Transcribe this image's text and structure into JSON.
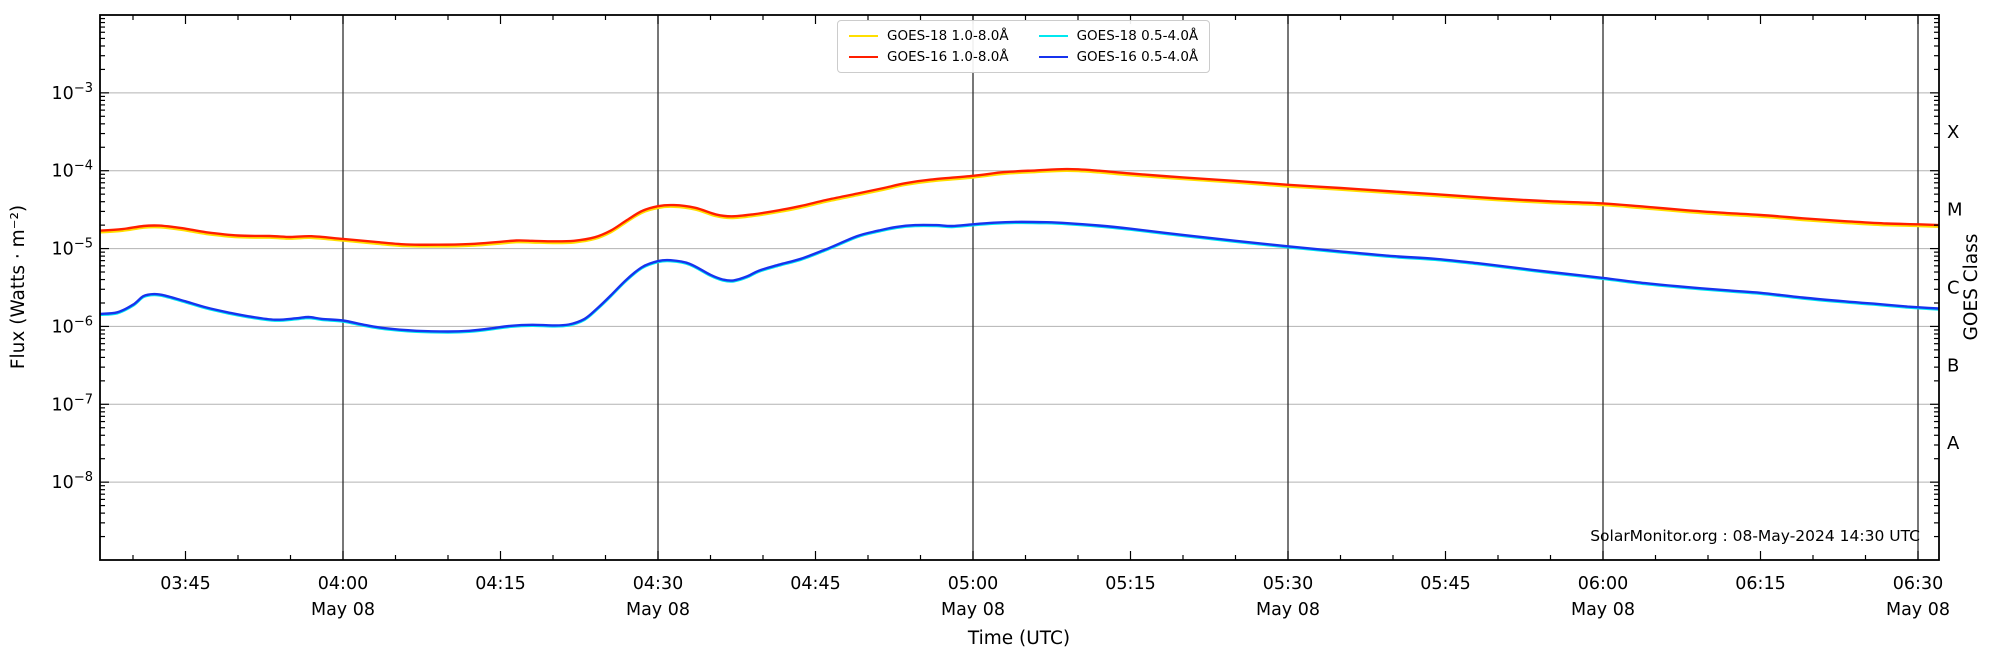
{
  "page": {
    "background": "#ffffff"
  },
  "legend": {
    "items": [
      {
        "label": "GOES-18 1.0-8.0Å",
        "color": "#ffdf00"
      },
      {
        "label": "GOES-16 1.0-8.0Å",
        "color": "#ff1e00"
      },
      {
        "label": "GOES-18 0.5-4.0Å",
        "color": "#00e8f0"
      },
      {
        "label": "GOES-16 0.5-4.0Å",
        "color": "#1733ee"
      }
    ]
  },
  "axes": {
    "x": {
      "title": "Time (UTC)",
      "minor_interval_min": 5,
      "major_ticks": [
        {
          "t": 0,
          "label": "03:45"
        },
        {
          "t": 15,
          "label": "04:00",
          "day": "May 08"
        },
        {
          "t": 30,
          "label": "04:15"
        },
        {
          "t": 45,
          "label": "04:30",
          "day": "May 08"
        },
        {
          "t": 60,
          "label": "04:45"
        },
        {
          "t": 75,
          "label": "05:00",
          "day": "May 08"
        },
        {
          "t": 90,
          "label": "05:15"
        },
        {
          "t": 105,
          "label": "05:30",
          "day": "May 08"
        },
        {
          "t": 120,
          "label": "05:45"
        },
        {
          "t": 135,
          "label": "06:00",
          "day": "May 08"
        },
        {
          "t": 150,
          "label": "06:15"
        },
        {
          "t": 165,
          "label": "06:30",
          "day": "May 08"
        }
      ]
    },
    "y_left": {
      "title": "Flux (Watts · m⁻²)",
      "labeled_decades": [
        -3,
        -4,
        -5,
        -6,
        -7,
        -8
      ],
      "range_decades": [
        -9,
        -2
      ]
    },
    "y_right": {
      "title": "GOES Class",
      "classes": [
        {
          "label": "X",
          "log_flux": -3.5
        },
        {
          "label": "M",
          "log_flux": -4.5
        },
        {
          "label": "C",
          "log_flux": -5.5
        },
        {
          "label": "B",
          "log_flux": -6.5
        },
        {
          "label": "A",
          "log_flux": -7.5
        }
      ]
    }
  },
  "watermark": {
    "text": "SolarMonitor.org : 08-May-2024 14:30 UTC"
  },
  "chart_data": {
    "type": "line",
    "title": "",
    "x_axis": {
      "label": "Time (UTC)",
      "date": "May 08",
      "start_utc": "03:37",
      "end_utc": "06:32",
      "t_unit": "minutes after 03:45 UTC",
      "major_tick_interval_min": 15,
      "vertical_gridlines_at": [
        "04:00",
        "04:30",
        "05:00",
        "05:30",
        "06:00",
        "06:30"
      ]
    },
    "y_axis": {
      "label": "Flux (Watts · m⁻²)",
      "scale": "log",
      "range": [
        1e-09,
        0.01
      ],
      "labeled_ticks": [
        "10⁻³",
        "10⁻⁴",
        "10⁻⁵",
        "10⁻⁶",
        "10⁻⁷",
        "10⁻⁸"
      ]
    },
    "right_axis": {
      "label": "GOES Class",
      "classes": [
        "X",
        "M",
        "C",
        "B",
        "A"
      ]
    },
    "legend_position": "top center",
    "grid": {
      "horizontal": "light gray at each decade",
      "vertical": "dark at 30-min marks"
    },
    "series": [
      {
        "name": "GOES-18 1.0-8.0Å",
        "color": "#ffdf00",
        "overlaps": "GOES-16 1.0-8.0Å",
        "note": "plots directly beneath GOES-16 long channel; only thin yellow fringes visible"
      },
      {
        "name": "GOES-16 1.0-8.0Å",
        "color": "#ff1e00",
        "points": [
          [
            -8.1,
            1.7e-05
          ],
          [
            -6,
            1.78e-05
          ],
          [
            -4,
            1.95e-05
          ],
          [
            -2.5,
            1.97e-05
          ],
          [
            -1,
            1.88e-05
          ],
          [
            0,
            1.8e-05
          ],
          [
            2,
            1.62e-05
          ],
          [
            5,
            1.47e-05
          ],
          [
            8,
            1.45e-05
          ],
          [
            10,
            1.41e-05
          ],
          [
            12,
            1.44e-05
          ],
          [
            15,
            1.33e-05
          ],
          [
            18,
            1.22e-05
          ],
          [
            21,
            1.13e-05
          ],
          [
            24,
            1.12e-05
          ],
          [
            27,
            1.14e-05
          ],
          [
            30,
            1.22e-05
          ],
          [
            31.5,
            1.27e-05
          ],
          [
            33,
            1.26e-05
          ],
          [
            35,
            1.24e-05
          ],
          [
            37,
            1.26e-05
          ],
          [
            39,
            1.4e-05
          ],
          [
            40.5,
            1.7e-05
          ],
          [
            42,
            2.3e-05
          ],
          [
            43.5,
            3.05e-05
          ],
          [
            45,
            3.5e-05
          ],
          [
            46.5,
            3.62e-05
          ],
          [
            48.5,
            3.35e-05
          ],
          [
            50.5,
            2.75e-05
          ],
          [
            52,
            2.6e-05
          ],
          [
            54,
            2.75e-05
          ],
          [
            56.5,
            3.1e-05
          ],
          [
            58.5,
            3.5e-05
          ],
          [
            61,
            4.2e-05
          ],
          [
            64,
            5.1e-05
          ],
          [
            66.5,
            6e-05
          ],
          [
            68.5,
            6.9e-05
          ],
          [
            71,
            7.7e-05
          ],
          [
            75,
            8.6e-05
          ],
          [
            78,
            9.6e-05
          ],
          [
            81,
            0.000101
          ],
          [
            84,
            0.000105
          ],
          [
            87,
            0.0001
          ],
          [
            90,
            9.2e-05
          ],
          [
            95,
            8.2e-05
          ],
          [
            100,
            7.4e-05
          ],
          [
            105,
            6.6e-05
          ],
          [
            110,
            6e-05
          ],
          [
            115,
            5.4e-05
          ],
          [
            119,
            5e-05
          ],
          [
            125,
            4.4e-05
          ],
          [
            130,
            4.05e-05
          ],
          [
            135,
            3.8e-05
          ],
          [
            139,
            3.45e-05
          ],
          [
            143,
            3.1e-05
          ],
          [
            147,
            2.85e-05
          ],
          [
            150,
            2.7e-05
          ],
          [
            154,
            2.45e-05
          ],
          [
            158,
            2.25e-05
          ],
          [
            162,
            2.1e-05
          ],
          [
            165,
            2.05e-05
          ],
          [
            167,
            2e-05
          ]
        ]
      },
      {
        "name": "GOES-18 0.5-4.0Å",
        "color": "#00e8f0",
        "overlaps": "GOES-16 0.5-4.0Å",
        "note": "plots directly beneath GOES-16 short channel; essentially hidden"
      },
      {
        "name": "GOES-16 0.5-4.0Å",
        "color": "#1733ee",
        "points": [
          [
            -8.1,
            1.45e-06
          ],
          [
            -6.5,
            1.52e-06
          ],
          [
            -5,
            1.9e-06
          ],
          [
            -4,
            2.45e-06
          ],
          [
            -3,
            2.6e-06
          ],
          [
            -2,
            2.5e-06
          ],
          [
            0,
            2.1e-06
          ],
          [
            2,
            1.75e-06
          ],
          [
            4,
            1.52e-06
          ],
          [
            6,
            1.35e-06
          ],
          [
            8.5,
            1.22e-06
          ],
          [
            10.5,
            1.27e-06
          ],
          [
            11.7,
            1.32e-06
          ],
          [
            13,
            1.25e-06
          ],
          [
            15,
            1.19e-06
          ],
          [
            17,
            1.05e-06
          ],
          [
            19,
            9.5e-07
          ],
          [
            22,
            8.8e-07
          ],
          [
            25,
            8.6e-07
          ],
          [
            27,
            8.8e-07
          ],
          [
            29,
            9.4e-07
          ],
          [
            31,
            1.02e-06
          ],
          [
            33,
            1.05e-06
          ],
          [
            35,
            1.03e-06
          ],
          [
            36.5,
            1.06e-06
          ],
          [
            38,
            1.25e-06
          ],
          [
            39.2,
            1.7e-06
          ],
          [
            40.5,
            2.5e-06
          ],
          [
            42,
            4e-06
          ],
          [
            43.5,
            5.8e-06
          ],
          [
            45,
            6.9e-06
          ],
          [
            46.2,
            7.1e-06
          ],
          [
            48,
            6.4e-06
          ],
          [
            50,
            4.6e-06
          ],
          [
            51.2,
            4e-06
          ],
          [
            52.2,
            3.9e-06
          ],
          [
            53.5,
            4.4e-06
          ],
          [
            54.6,
            5.2e-06
          ],
          [
            56.5,
            6.2e-06
          ],
          [
            58.6,
            7.4e-06
          ],
          [
            61,
            9.8e-06
          ],
          [
            64,
            1.45e-05
          ],
          [
            66,
            1.7e-05
          ],
          [
            67.7,
            1.9e-05
          ],
          [
            69.5,
            2e-05
          ],
          [
            71.5,
            2e-05
          ],
          [
            73,
            1.95e-05
          ],
          [
            75,
            2.05e-05
          ],
          [
            77,
            2.15e-05
          ],
          [
            79,
            2.2e-05
          ],
          [
            82,
            2.18e-05
          ],
          [
            84,
            2.12e-05
          ],
          [
            87,
            1.98e-05
          ],
          [
            90,
            1.8e-05
          ],
          [
            95,
            1.5e-05
          ],
          [
            100,
            1.26e-05
          ],
          [
            105,
            1.07e-05
          ],
          [
            110,
            9.2e-06
          ],
          [
            115,
            8e-06
          ],
          [
            119,
            7.4e-06
          ],
          [
            123,
            6.5e-06
          ],
          [
            127,
            5.6e-06
          ],
          [
            130,
            5e-06
          ],
          [
            135,
            4.2e-06
          ],
          [
            139,
            3.6e-06
          ],
          [
            143,
            3.2e-06
          ],
          [
            147,
            2.9e-06
          ],
          [
            150,
            2.7e-06
          ],
          [
            154,
            2.35e-06
          ],
          [
            158,
            2.1e-06
          ],
          [
            161,
            1.95e-06
          ],
          [
            164,
            1.8e-06
          ],
          [
            166,
            1.73e-06
          ],
          [
            167,
            1.7e-06
          ]
        ]
      }
    ]
  }
}
